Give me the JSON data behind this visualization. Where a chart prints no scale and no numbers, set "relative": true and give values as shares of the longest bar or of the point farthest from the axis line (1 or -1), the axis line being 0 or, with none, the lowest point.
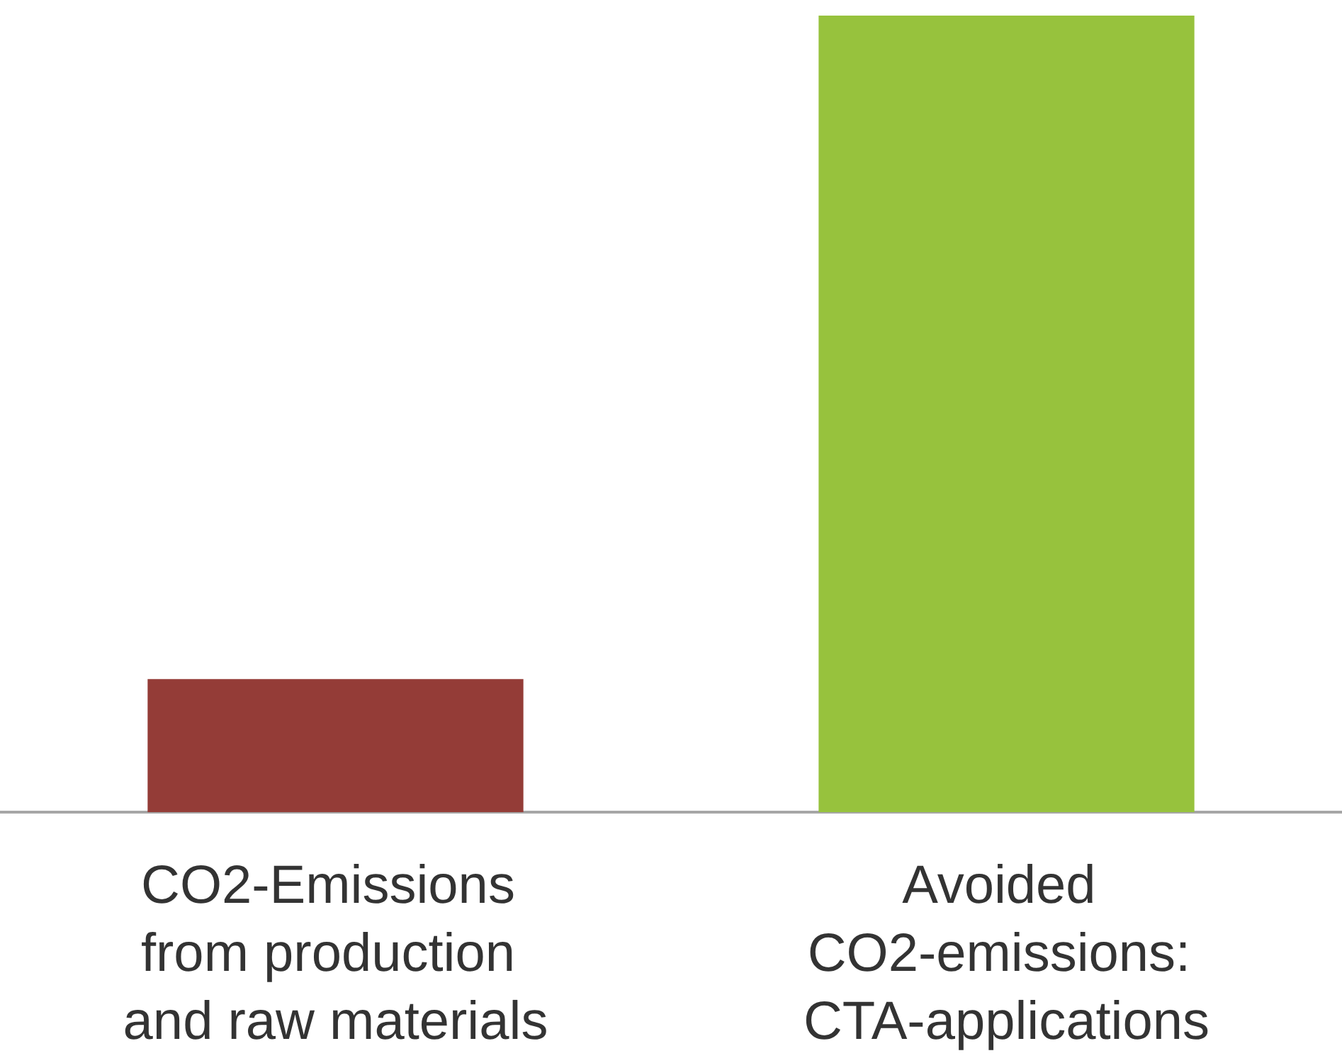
{
  "chart_data": {
    "type": "bar",
    "relative": true,
    "categories": [
      "CO2-Emissions from production and raw materials",
      "Avoided CO2-emissions: CTA-applications"
    ],
    "values": [
      0.167,
      1
    ],
    "colors": [
      "#943c37",
      "#97c23d"
    ]
  }
}
